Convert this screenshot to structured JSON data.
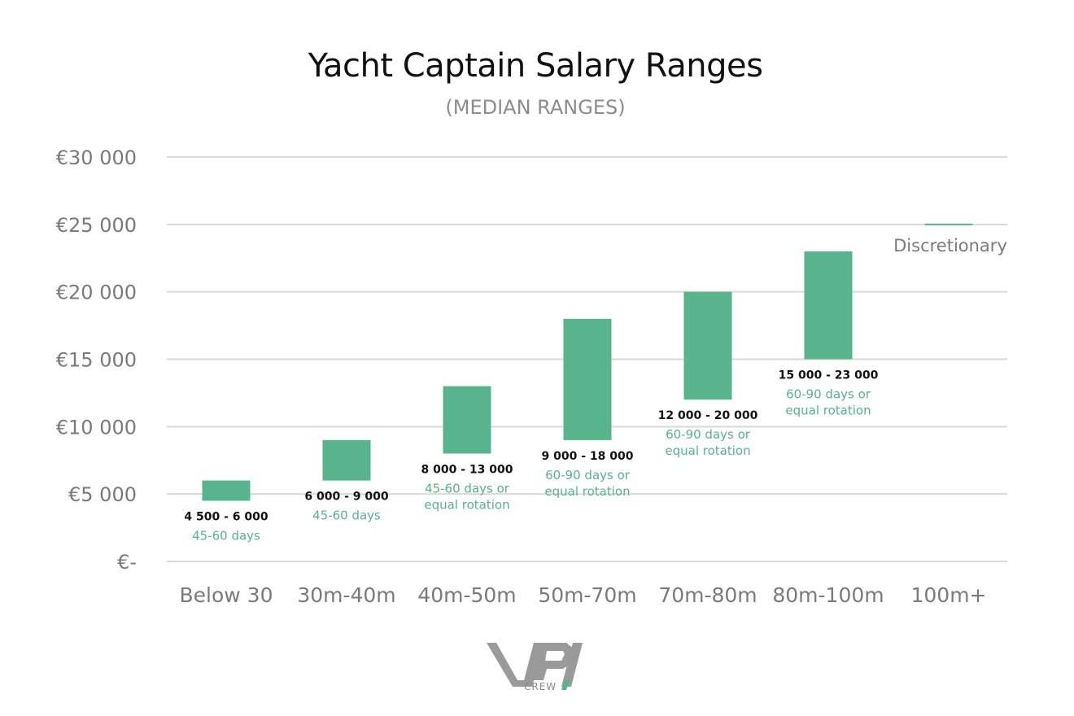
{
  "chart_data": {
    "type": "bar",
    "subtype": "floating-range",
    "title": "Yacht Captain Salary Ranges",
    "subtitle": "(MEDIAN RANGES)",
    "ylim": [
      0,
      30000
    ],
    "y_ticks": [
      {
        "value": 0,
        "label": "€-"
      },
      {
        "value": 5000,
        "label": "€5 000"
      },
      {
        "value": 10000,
        "label": "€10 000"
      },
      {
        "value": 15000,
        "label": "€15 000"
      },
      {
        "value": 20000,
        "label": "€20 000"
      },
      {
        "value": 25000,
        "label": "€25 000"
      },
      {
        "value": 30000,
        "label": "€30 000"
      }
    ],
    "grid": true,
    "bar_color": "#58b48c",
    "label_color": "#56b48a",
    "categories": [
      "Below 30",
      "30m-40m",
      "40m-50m",
      "50m-70m",
      "70m-80m",
      "80m-100m",
      "100m+"
    ],
    "bars": [
      {
        "low": 4500,
        "high": 6000,
        "range_label": "4 500 - 6 000",
        "rotation": [
          "45-60 days"
        ]
      },
      {
        "low": 6000,
        "high": 9000,
        "range_label": "6 000 - 9 000",
        "rotation": [
          "45-60 days"
        ]
      },
      {
        "low": 8000,
        "high": 13000,
        "range_label": "8 000 - 13 000",
        "rotation": [
          "45-60 days or",
          "equal rotation"
        ]
      },
      {
        "low": 9000,
        "high": 18000,
        "range_label": "9 000 - 18 000",
        "rotation": [
          "60-90 days or",
          "equal rotation"
        ]
      },
      {
        "low": 12000,
        "high": 20000,
        "range_label": "12 000 - 20 000",
        "rotation": [
          "60-90 days or",
          "equal rotation"
        ]
      },
      {
        "low": 15000,
        "high": 23000,
        "range_label": "15 000 - 23 000",
        "rotation": [
          "60-90 days or",
          "equal rotation"
        ]
      },
      {
        "low": 25000,
        "high": 25000,
        "range_label": "Discretionary",
        "rotation": []
      }
    ]
  },
  "logo": {
    "text": "CREW",
    "icon": "vpi-crew-logo"
  }
}
